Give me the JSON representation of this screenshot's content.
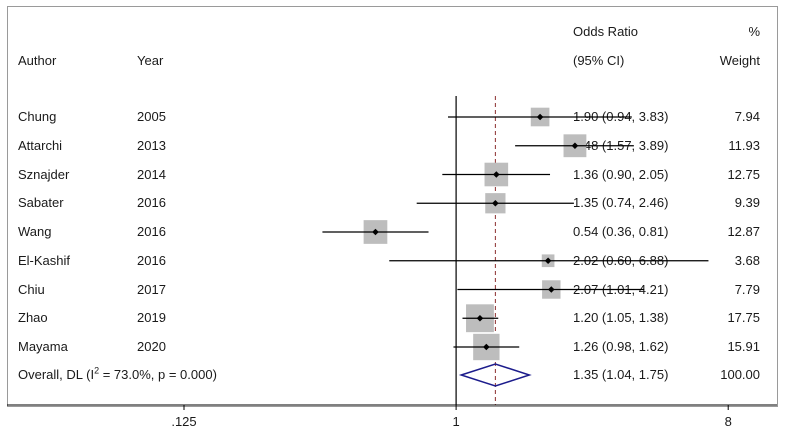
{
  "headers": {
    "author": "Author",
    "year": "Year",
    "or_line1": "Odds Ratio",
    "or_line2": "(95% CI)",
    "weight_line1": "%",
    "weight_line2": "Weight"
  },
  "overall": {
    "label_prefix": "Overall, DL (I",
    "label_sup": "2",
    "label_suffix": " = 73.0%, p = 0.000)",
    "or_text": "1.35 (1.04, 1.75)",
    "weight_text": "100.00"
  },
  "axis": {
    "tick_labels": [
      ".125",
      "1",
      "8"
    ]
  },
  "colors": {
    "line": "#000000",
    "marker_box": "#bdbdbd",
    "diamond": "#1c1c8c",
    "dashed": "#8b2e2e"
  },
  "chart_data": {
    "type": "forest",
    "scale": "log",
    "null_value": 1,
    "xlim": [
      0.125,
      8
    ],
    "ticks": [
      0.125,
      1,
      8
    ],
    "pooled_estimate": 1.35,
    "pooled_ci": [
      1.04,
      1.75
    ],
    "studies": [
      {
        "author": "Chung",
        "year": "2005",
        "or": 1.9,
        "lo": 0.94,
        "hi": 3.83,
        "or_text": "1.90 (0.94, 3.83)",
        "weight": 7.94,
        "weight_text": "7.94"
      },
      {
        "author": "Attarchi",
        "year": "2013",
        "or": 2.48,
        "lo": 1.57,
        "hi": 3.89,
        "or_text": "2.48 (1.57, 3.89)",
        "weight": 11.93,
        "weight_text": "11.93"
      },
      {
        "author": "Sznajder",
        "year": "2014",
        "or": 1.36,
        "lo": 0.9,
        "hi": 2.05,
        "or_text": "1.36 (0.90, 2.05)",
        "weight": 12.75,
        "weight_text": "12.75"
      },
      {
        "author": "Sabater",
        "year": "2016",
        "or": 1.35,
        "lo": 0.74,
        "hi": 2.46,
        "or_text": "1.35 (0.74, 2.46)",
        "weight": 9.39,
        "weight_text": "9.39"
      },
      {
        "author": "Wang",
        "year": "2016",
        "or": 0.54,
        "lo": 0.36,
        "hi": 0.81,
        "or_text": "0.54 (0.36, 0.81)",
        "weight": 12.87,
        "weight_text": "12.87"
      },
      {
        "author": "El-Kashif",
        "year": "2016",
        "or": 2.02,
        "lo": 0.6,
        "hi": 6.88,
        "or_text": "2.02 (0.60, 6.88)",
        "weight": 3.68,
        "weight_text": "3.68"
      },
      {
        "author": "Chiu",
        "year": "2017",
        "or": 2.07,
        "lo": 1.01,
        "hi": 4.21,
        "or_text": "2.07 (1.01, 4.21)",
        "weight": 7.79,
        "weight_text": "7.79"
      },
      {
        "author": "Zhao",
        "year": "2019",
        "or": 1.2,
        "lo": 1.05,
        "hi": 1.38,
        "or_text": "1.20 (1.05, 1.38)",
        "weight": 17.75,
        "weight_text": "17.75"
      },
      {
        "author": "Mayama",
        "year": "2020",
        "or": 1.26,
        "lo": 0.98,
        "hi": 1.62,
        "or_text": "1.26 (0.98, 1.62)",
        "weight": 15.91,
        "weight_text": "15.91"
      }
    ]
  }
}
